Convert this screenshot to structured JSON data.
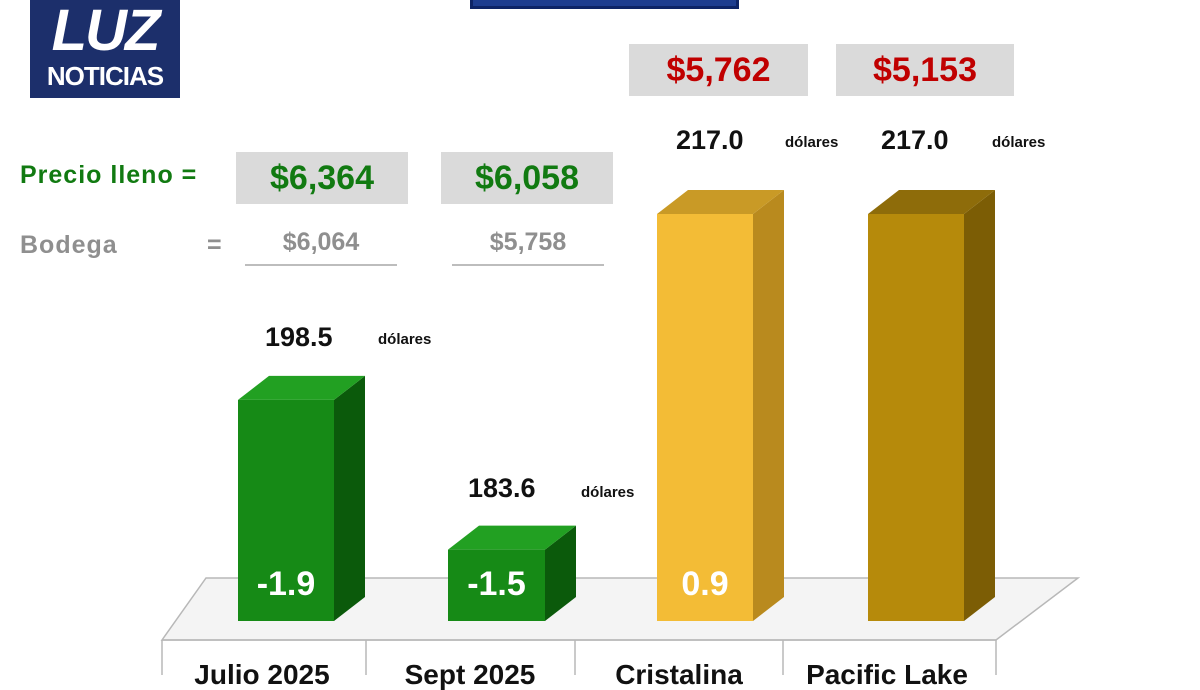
{
  "logo": {
    "line1": "LUZ",
    "line2": "NOTICIAS"
  },
  "price_rows": {
    "full": {
      "label": "Precio lleno =",
      "values": [
        "$6,364",
        "$6,058"
      ]
    },
    "warehouse": {
      "label": "Bodega",
      "equals": "=",
      "values": [
        "$6,064",
        "$5,758"
      ]
    },
    "red_boxes": [
      "$5,762",
      "$5,153"
    ]
  },
  "colors": {
    "green_front": "#168a16",
    "green_side": "#0b5a0b",
    "green_top": "#22a022",
    "gold_front": "#f3bc36",
    "gold_side": "#b98a1e",
    "gold_top": "#c99a26",
    "dark_gold_front": "#b68a0b",
    "dark_gold_side": "#7c5d05",
    "dark_gold_top": "#8e6c0a",
    "red": "#c00000",
    "green_text": "#117a11"
  },
  "chart_data": {
    "type": "bar",
    "categories": [
      "Julio 2025",
      "Sept 2025",
      "Cristalina",
      "Pacific Lake"
    ],
    "values": [
      198.5,
      183.6,
      217.0,
      217.0
    ],
    "value_labels": [
      "198.5",
      "183.6",
      "217.0",
      "217.0"
    ],
    "unit_label": "dólares",
    "inner_labels": [
      "-1.9",
      "-1.5",
      "0.9",
      ""
    ],
    "title": "",
    "xlabel": "",
    "ylabel": "",
    "ylim": [
      176.5,
      217.0
    ],
    "grid": false
  }
}
